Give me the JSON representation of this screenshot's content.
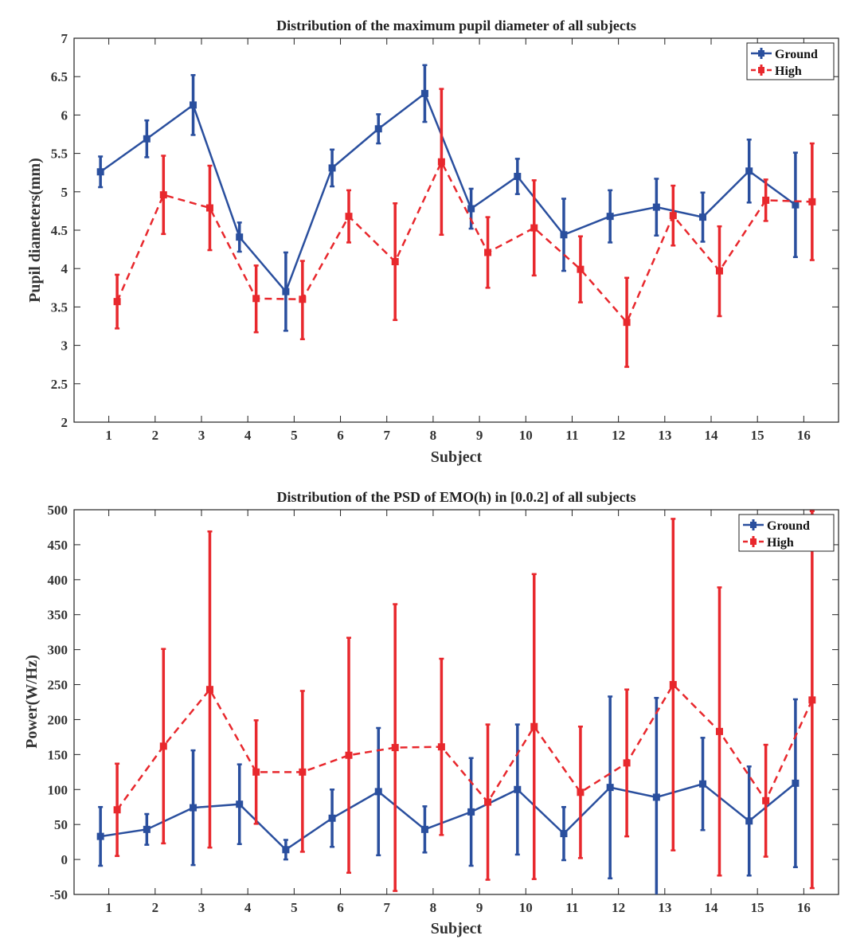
{
  "chart_data": [
    {
      "type": "line",
      "error_bars": true,
      "title": "Distribution of the maximum pupil diameter of all subjects",
      "xlabel": "Subject",
      "ylabel": "Pupil diameters(mm)",
      "x": [
        1,
        2,
        3,
        4,
        5,
        6,
        7,
        8,
        9,
        10,
        11,
        12,
        13,
        14,
        15,
        16
      ],
      "xticks": [
        "1",
        "2",
        "3",
        "4",
        "5",
        "6",
        "7",
        "8",
        "9",
        "10",
        "11",
        "12",
        "13",
        "14",
        "15",
        "16"
      ],
      "xlim": [
        0.25,
        16.75
      ],
      "ylim": [
        2,
        7
      ],
      "yticks": [
        "2",
        "2.5",
        "3",
        "3.5",
        "4",
        "4.5",
        "5",
        "5.5",
        "6",
        "6.5",
        "7"
      ],
      "legend_position": "top-right",
      "series": [
        {
          "name": "Ground",
          "color": "#2a4f9e",
          "dashed": false,
          "offset": -0.18,
          "values": [
            5.26,
            5.69,
            6.13,
            4.41,
            3.7,
            5.31,
            5.82,
            6.28,
            4.78,
            5.2,
            4.44,
            4.68,
            4.8,
            4.67,
            5.27,
            4.83
          ],
          "upper": [
            5.46,
            5.93,
            6.52,
            4.6,
            4.21,
            5.55,
            6.01,
            6.65,
            5.04,
            5.43,
            4.91,
            5.02,
            5.17,
            4.99,
            5.68,
            5.51
          ],
          "lower": [
            5.06,
            5.45,
            5.74,
            4.22,
            3.19,
            5.07,
            5.63,
            5.91,
            4.52,
            4.97,
            3.97,
            4.34,
            4.43,
            4.35,
            4.86,
            4.15
          ]
        },
        {
          "name": "High",
          "color": "#e8282d",
          "dashed": true,
          "offset": 0.18,
          "values": [
            3.57,
            4.96,
            4.79,
            3.61,
            3.6,
            4.68,
            4.09,
            5.39,
            4.21,
            4.53,
            3.99,
            3.3,
            4.69,
            3.97,
            4.89,
            4.87
          ],
          "upper": [
            3.92,
            5.47,
            5.34,
            4.04,
            4.1,
            5.02,
            4.85,
            6.34,
            4.67,
            5.15,
            4.42,
            3.88,
            5.08,
            4.55,
            5.16,
            5.63
          ],
          "lower": [
            3.22,
            4.45,
            4.24,
            3.17,
            3.08,
            4.34,
            3.33,
            4.44,
            3.75,
            3.91,
            3.56,
            2.72,
            4.3,
            3.38,
            4.62,
            4.11
          ]
        }
      ]
    },
    {
      "type": "line",
      "error_bars": true,
      "title": "Distribution of the PSD of EMO(h) in [0.0.2] of all subjects",
      "xlabel": "Subject",
      "ylabel": "Power(W/Hz)",
      "x": [
        1,
        2,
        3,
        4,
        5,
        6,
        7,
        8,
        9,
        10,
        11,
        12,
        13,
        14,
        15,
        16
      ],
      "xticks": [
        "1",
        "2",
        "3",
        "4",
        "5",
        "6",
        "7",
        "8",
        "9",
        "10",
        "11",
        "12",
        "13",
        "14",
        "15",
        "16"
      ],
      "xlim": [
        0.25,
        16.75
      ],
      "ylim": [
        -50,
        500
      ],
      "yticks": [
        "-50",
        "0",
        "50",
        "100",
        "150",
        "200",
        "250",
        "300",
        "350",
        "400",
        "450",
        "500"
      ],
      "legend_position": "top-right",
      "series": [
        {
          "name": "Ground",
          "color": "#2a4f9e",
          "dashed": false,
          "offset": -0.18,
          "values": [
            33,
            43,
            74,
            79,
            14,
            59,
            97,
            43,
            68,
            100,
            37,
            103,
            89,
            108,
            55,
            109
          ],
          "upper": [
            75,
            65,
            156,
            136,
            28,
            100,
            188,
            76,
            145,
            193,
            75,
            233,
            231,
            174,
            133,
            229
          ],
          "lower": [
            -9,
            21,
            -8,
            22,
            0,
            18,
            6,
            10,
            -9,
            7,
            -1,
            -27,
            -53,
            42,
            -23,
            -11
          ]
        },
        {
          "name": "High",
          "color": "#e8282d",
          "dashed": true,
          "offset": 0.18,
          "values": [
            71,
            162,
            243,
            125,
            125,
            149,
            160,
            161,
            82,
            190,
            96,
            138,
            250,
            183,
            84,
            228
          ],
          "upper": [
            137,
            301,
            469,
            199,
            241,
            317,
            365,
            287,
            193,
            408,
            190,
            243,
            487,
            389,
            164,
            498
          ],
          "lower": [
            5,
            23,
            17,
            51,
            11,
            -19,
            -45,
            35,
            -29,
            -28,
            2,
            33,
            13,
            -23,
            4,
            -41
          ]
        }
      ]
    }
  ]
}
